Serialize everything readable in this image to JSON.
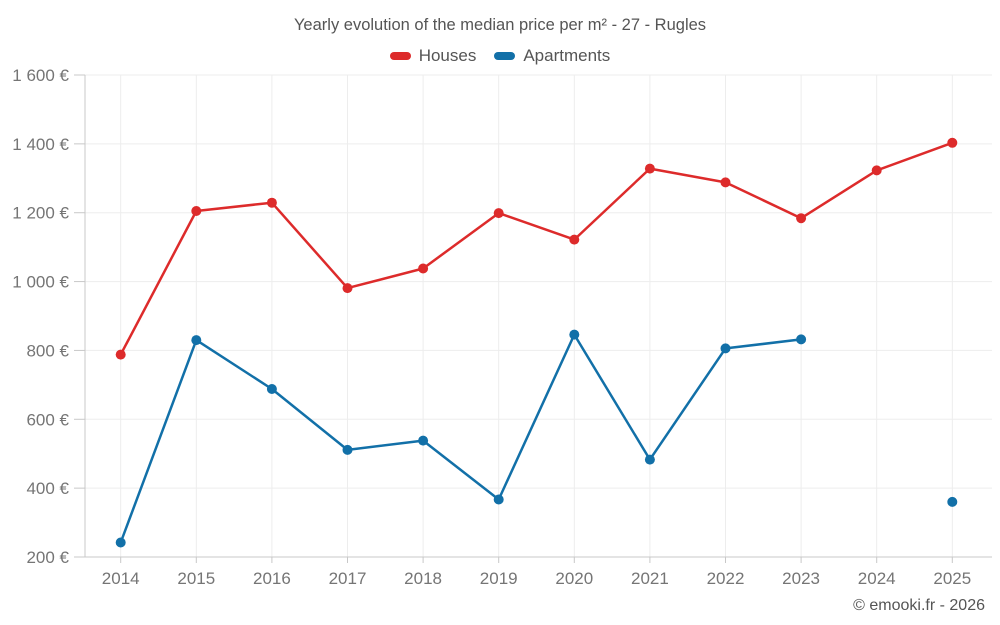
{
  "header": {
    "title": "Yearly evolution of the median price per m² - 27 - Rugles"
  },
  "legend": {
    "items": [
      {
        "label": "Houses",
        "color": "#dd2b2b"
      },
      {
        "label": "Apartments",
        "color": "#1270a8"
      }
    ]
  },
  "footer": {
    "watermark": "© emooki.fr - 2026"
  },
  "chart_data": {
    "type": "line",
    "title": "Yearly evolution of the median price per m² - 27 - Rugles",
    "categories": [
      "2014",
      "2015",
      "2016",
      "2017",
      "2018",
      "2019",
      "2020",
      "2021",
      "2022",
      "2023",
      "2024",
      "2025"
    ],
    "series": [
      {
        "name": "Houses",
        "color": "#dd2b2b",
        "values": [
          788,
          1205,
          1229,
          981,
          1038,
          1199,
          1122,
          1328,
          1288,
          1184,
          1323,
          1403
        ]
      },
      {
        "name": "Apartments",
        "color": "#1270a8",
        "values": [
          242,
          830,
          688,
          511,
          538,
          367,
          846,
          483,
          806,
          832,
          null,
          360
        ]
      }
    ],
    "xlabel": "",
    "ylabel": "",
    "ylim": [
      200,
      1600
    ],
    "ytick_step": 200,
    "ytick_suffix": " €",
    "grid": true,
    "legend_position": "top",
    "gap_policy": "break-line-on-missing"
  }
}
